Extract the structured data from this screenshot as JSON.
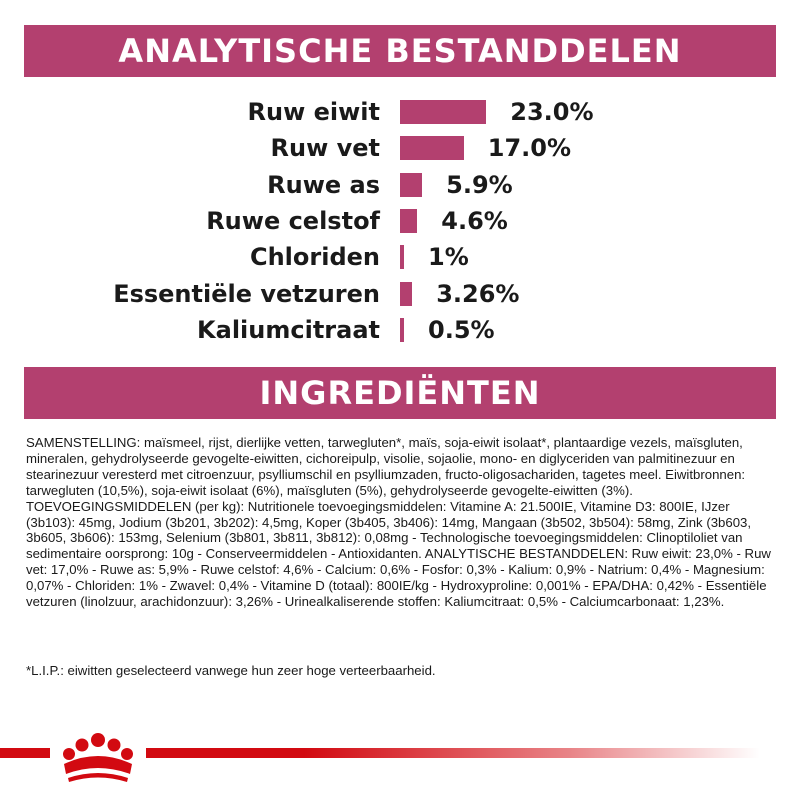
{
  "analytic": {
    "title": "ANALYTISCHE BESTANDDELEN",
    "rows": [
      {
        "label": "Ruw eiwit",
        "value": "23.0%",
        "percent": 23.0
      },
      {
        "label": "Ruw vet",
        "value": "17.0%",
        "percent": 17.0
      },
      {
        "label": "Ruwe as",
        "value": "5.9%",
        "percent": 5.9
      },
      {
        "label": "Ruwe celstof",
        "value": "4.6%",
        "percent": 4.6
      },
      {
        "label": "Chloriden",
        "value": "1%",
        "percent": 1
      },
      {
        "label": "Essentiële vetzuren",
        "value": "3.26%",
        "percent": 3.26
      },
      {
        "label": "Kaliumcitraat",
        "value": "0.5%",
        "percent": 0.5
      }
    ]
  },
  "ingredients": {
    "title": "INGREDIËNTEN",
    "text": "SAMENSTELLING: maïsmeel, rijst, dierlijke vetten, tarwegluten*, maïs, soja-eiwit isolaat*, plantaardige vezels, maïsgluten, mineralen, gehydrolyseerde gevogelte-eiwitten, cichoreipulp, visolie, sojaolie, mono- en diglyceriden van palmitinezuur en stearinezuur veresterd met citroenzuur, psylliumschil en psylliumzaden, fructo-oligosachariden, tagetes meel. Eiwitbronnen: tarwegluten (10,5%), soja-eiwit isolaat (6%), maïsgluten (5%), gehydrolyseerde gevogelte-eiwitten (3%). TOEVOEGINGSMIDDELEN (per kg): Nutritionele toevoegingsmiddelen: Vitamine A: 21.500IE, Vitamine D3: 800IE, IJzer (3b103): 45mg, Jodium (3b201, 3b202): 4,5mg, Koper (3b405, 3b406): 14mg, Mangaan (3b502, 3b504): 58mg, Zink (3b603, 3b605, 3b606): 153mg, Selenium (3b801, 3b811, 3b812): 0,08mg - Technologische toevoegingsmiddelen: Clinoptiloliet van sedimentaire oorsprong: 10g - Conserveermiddelen - Antioxidanten. ANALYTISCHE BESTANDDELEN: Ruw eiwit: 23,0% - Ruw vet: 17,0% - Ruwe as: 5,9% - Ruwe celstof: 4,6% - Calcium: 0,6% - Fosfor: 0,3% - Kalium: 0,9% - Natrium: 0,4% - Magnesium: 0,07% - Chloriden: 1% - Zwavel: 0,4% - Vitamine D (totaal): 800IE/kg - Hydroxyproline: 0,001% - EPA/DHA: 0,42% - Essentiële vetzuren (linolzuur, arachidonzuur): 3,26% - Urinealkaliserende stoffen: Kaliumcitraat: 0,5% - Calciumcarbonaat: 1,23%.",
    "footnote": "*L.I.P.: eiwitten geselecteerd vanwege hun zeer hoge verteerbaarheid."
  },
  "brand": {
    "logo_icon": "crown-icon",
    "accent_color": "#b3406f",
    "brand_color": "#d20a11"
  }
}
